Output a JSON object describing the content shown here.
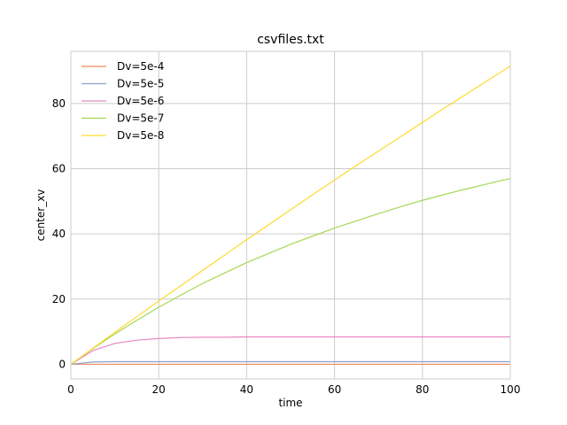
{
  "chart_data": {
    "type": "line",
    "title": "csvfiles.txt",
    "xlabel": "time",
    "ylabel": "center_xv",
    "xlim": [
      0,
      100
    ],
    "ylim": [
      -4.5,
      96
    ],
    "xticks": [
      0,
      20,
      40,
      60,
      80,
      100
    ],
    "yticks": [
      0,
      20,
      40,
      60,
      80
    ],
    "grid": true,
    "legend_position": "top-left",
    "x": [
      0,
      5,
      10,
      15,
      20,
      25,
      30,
      35,
      40,
      45,
      50,
      55,
      60,
      65,
      70,
      75,
      80,
      85,
      90,
      95,
      100
    ],
    "series": [
      {
        "name": "Dv=5e-4",
        "color": "#f28e5b",
        "values": [
          0,
          0,
          0,
          0,
          0,
          0,
          0,
          0,
          0,
          0,
          0,
          0,
          0,
          0,
          0,
          0,
          0,
          0,
          0,
          0,
          0
        ]
      },
      {
        "name": "Dv=5e-5",
        "color": "#8da0cb",
        "values": [
          0,
          0.7,
          0.8,
          0.8,
          0.8,
          0.8,
          0.8,
          0.8,
          0.8,
          0.8,
          0.8,
          0.8,
          0.8,
          0.8,
          0.8,
          0.8,
          0.8,
          0.8,
          0.8,
          0.8,
          0.8
        ]
      },
      {
        "name": "Dv=5e-6",
        "color": "#e78ac3",
        "values": [
          0,
          4.2,
          6.4,
          7.4,
          7.9,
          8.2,
          8.3,
          8.3,
          8.4,
          8.4,
          8.4,
          8.4,
          8.4,
          8.4,
          8.4,
          8.4,
          8.4,
          8.4,
          8.4,
          8.4,
          8.4
        ]
      },
      {
        "name": "Dv=5e-7",
        "color": "#a6d854",
        "values": [
          0,
          4.8,
          9.3,
          13.5,
          17.5,
          21.2,
          24.8,
          28.0,
          31.2,
          34.0,
          36.8,
          39.3,
          41.8,
          44.0,
          46.2,
          48.3,
          50.3,
          52.1,
          53.8,
          55.4,
          57.0
        ]
      },
      {
        "name": "Dv=5e-8",
        "color": "#ffd92f",
        "values": [
          0,
          4.9,
          9.8,
          14.6,
          19.4,
          24.1,
          28.8,
          33.5,
          38.2,
          42.8,
          47.4,
          52.0,
          56.5,
          61.0,
          65.4,
          69.8,
          74.2,
          78.6,
          82.9,
          87.2,
          91.5
        ]
      }
    ]
  }
}
